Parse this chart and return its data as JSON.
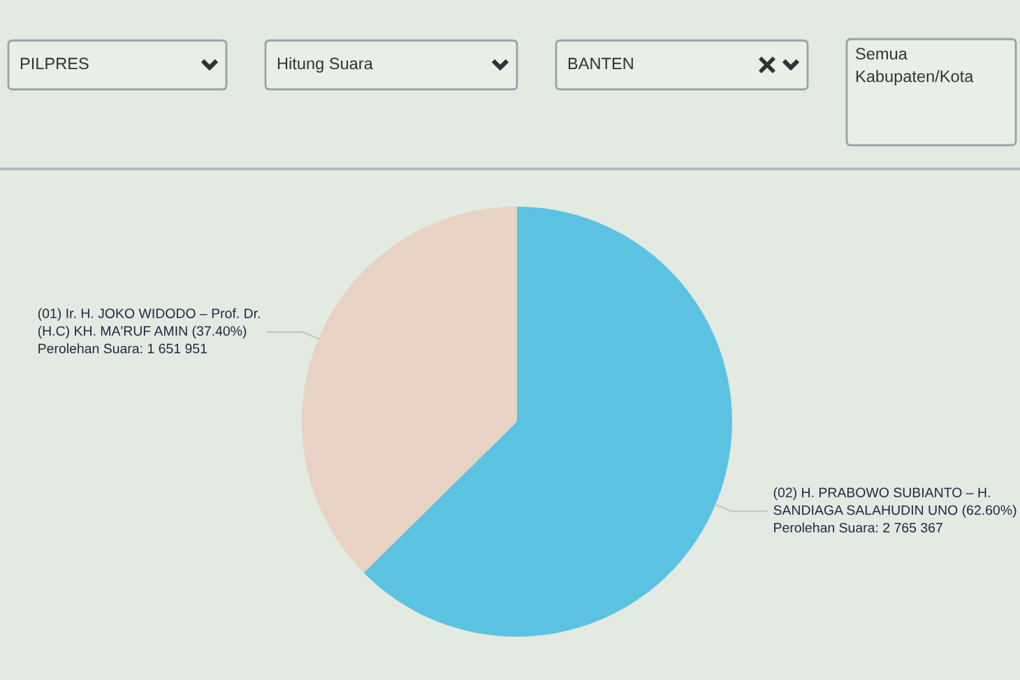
{
  "chart_data": {
    "type": "pie",
    "categories": [
      "(01) Ir. H. JOKO WIDODO – Prof. Dr.\n(H.C) KH. MA'RUF AMIN (37.40%)",
      "(02) H. PRABOWO SUBIANTO – H.\nSANDIAGA SALAHUDIN UNO (62.60%)"
    ],
    "values": [
      1651951,
      2765367
    ],
    "colors": [
      "#e7d2c4",
      "#5cc2e2"
    ],
    "value_labels": [
      "Perolehan Suara: 1 651 951",
      "Perolehan Suara: 2 765 367"
    ],
    "annotations": [
      "PILPRES",
      "Hitung Suara",
      "BANTEN",
      "Semua\nKabupaten/Kota"
    ]
  }
}
